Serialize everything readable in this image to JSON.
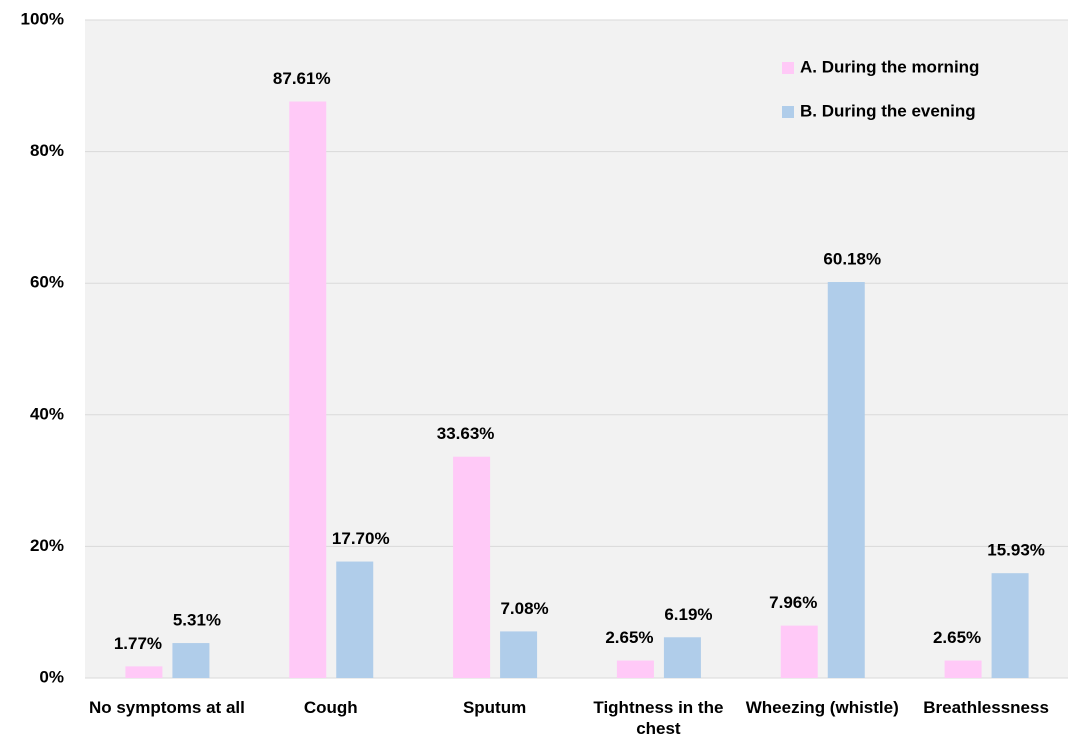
{
  "chart_data": {
    "type": "bar",
    "categories": [
      "No symptoms at all",
      "Cough",
      "Sputum",
      "Tightness in the chest",
      "Wheezing (whistle)",
      "Breathlessness"
    ],
    "series": [
      {
        "name": "A. During the morning",
        "color": "#ffc9f7",
        "values": [
          1.77,
          87.61,
          33.63,
          2.65,
          7.96,
          2.65
        ],
        "value_labels": [
          "1.77%",
          "87.61%",
          "33.63%",
          "2.65%",
          "7.96%",
          "2.65%"
        ]
      },
      {
        "name": "B. During the evening",
        "color": "#b0cdea",
        "values": [
          5.31,
          17.7,
          7.08,
          6.19,
          60.18,
          15.93
        ],
        "value_labels": [
          "5.31%",
          "17.70%",
          "7.08%",
          "6.19%",
          "60.18%",
          "15.93%"
        ]
      }
    ],
    "ylim": [
      0,
      100
    ],
    "yticks": [
      {
        "value": 0,
        "label": "0%"
      },
      {
        "value": 20,
        "label": "20%"
      },
      {
        "value": 40,
        "label": "40%"
      },
      {
        "value": 60,
        "label": "60%"
      },
      {
        "value": 80,
        "label": "80%"
      },
      {
        "value": 100,
        "label": "100%"
      }
    ],
    "grid": true,
    "legend": "upper right"
  }
}
